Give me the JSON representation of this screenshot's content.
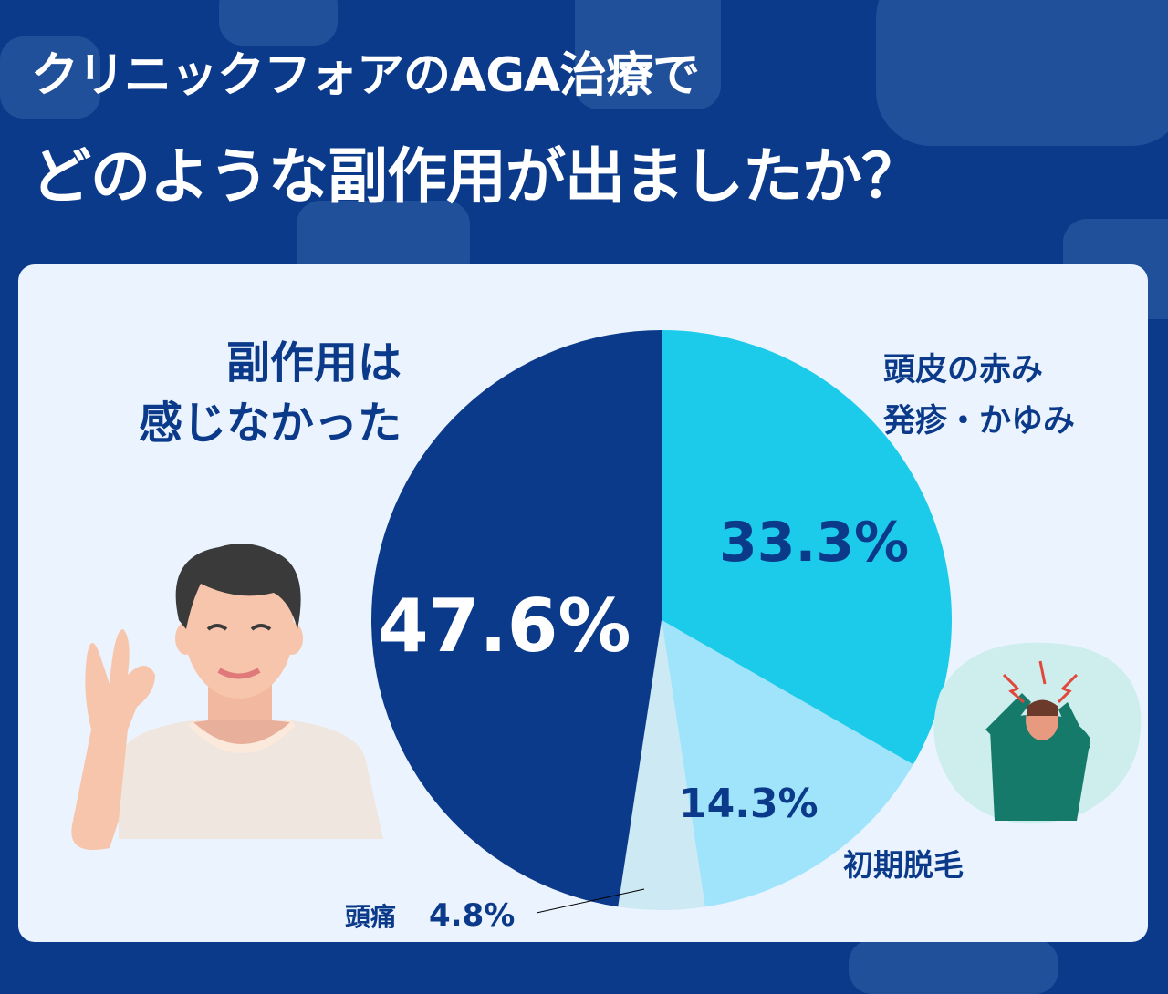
{
  "title_line1": "クリニックフォアのAGA治療で",
  "title_line2": "どのような副作用が出ましたか？",
  "colors": {
    "background": "#0b3a8a",
    "card": "#ebf4fe",
    "navy": "#0b3a8a",
    "cyan": "#1ccbe9",
    "lightblue": "#a0e4fb",
    "pale": "#cde9f3"
  },
  "chart_data": {
    "type": "pie",
    "title": "どのような副作用が出ましたか？",
    "slices": [
      {
        "label": "頭皮の赤み 発疹・かゆみ",
        "value": 33.3,
        "display": "33.3%",
        "color": "#1ccbe9"
      },
      {
        "label": "初期脱毛",
        "value": 14.3,
        "display": "14.3%",
        "color": "#a0e4fb"
      },
      {
        "label": "頭痛",
        "value": 4.8,
        "display": "4.8%",
        "color": "#cde9f3"
      },
      {
        "label": "副作用は感じなかった",
        "value": 47.6,
        "display": "47.6%",
        "color": "#0b3a8a"
      }
    ],
    "start": "12 o'clock",
    "direction": "clockwise"
  },
  "labels": {
    "none_line1": "副作用は",
    "none_line2": "感じなかった",
    "scalp_line1": "頭皮の赤み",
    "scalp_line2": "発疹・かゆみ",
    "hairloss": "初期脱毛",
    "headache": "頭痛"
  }
}
